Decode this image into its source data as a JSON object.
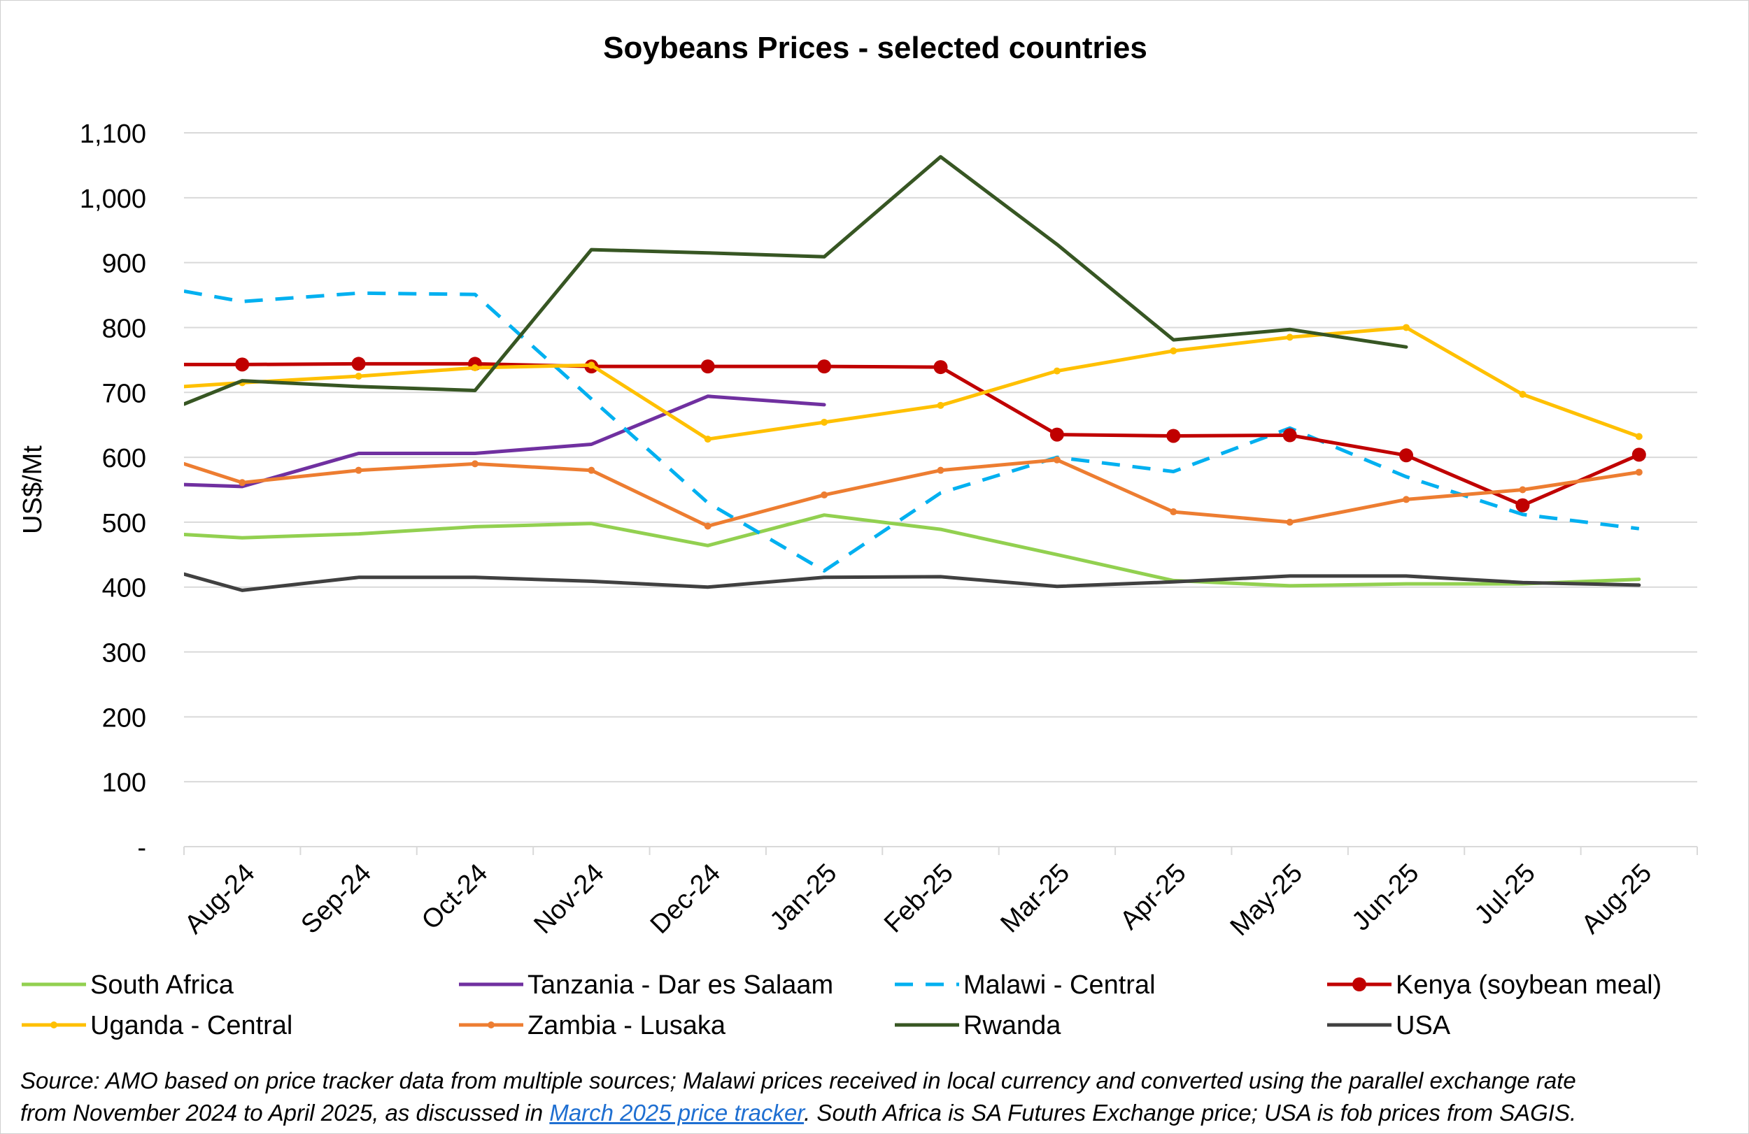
{
  "chart_data": {
    "type": "line",
    "title": "Soybeans Prices -  selected countries",
    "ylabel": "US$/Mt",
    "xlabel": "",
    "ylim": [
      0,
      1100
    ],
    "yticks": [
      0,
      100,
      200,
      300,
      400,
      500,
      600,
      700,
      800,
      900,
      1000,
      1100
    ],
    "ytick_labels": [
      "-",
      "100",
      "200",
      "300",
      "400",
      "500",
      "600",
      "700",
      "800",
      "900",
      "1,000",
      "1,100"
    ],
    "categories": [
      "Aug-24",
      "Sep-24",
      "Oct-24",
      "Nov-24",
      "Dec-24",
      "Jan-25",
      "Feb-25",
      "Mar-25",
      "Apr-25",
      "May-25",
      "Jun-25",
      "Jul-25",
      "Aug-25"
    ],
    "grid": "horizontal",
    "legend_position": "bottom",
    "series": [
      {
        "name": "South Africa",
        "color": "#92d050",
        "style": "solid",
        "marker": "none",
        "x": [
          -0.5,
          0,
          1,
          2,
          3,
          4,
          5,
          6,
          7,
          8,
          9,
          10,
          11,
          12
        ],
        "values": [
          481,
          476,
          482,
          493,
          498,
          464,
          511,
          489,
          450,
          410,
          402,
          405,
          405,
          412
        ]
      },
      {
        "name": "Tanzania - Dar es Salaam",
        "color": "#7030a0",
        "style": "solid",
        "marker": "none",
        "x": [
          -0.5,
          0,
          1,
          2,
          3,
          4,
          5
        ],
        "values": [
          558,
          555,
          606,
          606,
          620,
          694,
          681
        ]
      },
      {
        "name": "Malawi - Central",
        "color": "#00b0f0",
        "style": "dashed",
        "marker": "none",
        "x": [
          -0.5,
          0,
          1,
          2,
          3,
          4,
          5,
          6,
          7,
          8,
          9,
          10,
          11,
          12
        ],
        "values": [
          856,
          840,
          853,
          851,
          690,
          530,
          425,
          545,
          600,
          578,
          645,
          570,
          512,
          490
        ]
      },
      {
        "name": "Kenya (soybean meal)",
        "color": "#c00000",
        "style": "solid",
        "marker": "circle-large",
        "x": [
          -0.5,
          0,
          1,
          2,
          3,
          4,
          5,
          6,
          7,
          8,
          9,
          10,
          11,
          12
        ],
        "values": [
          743,
          743,
          744,
          744,
          740,
          740,
          740,
          739,
          635,
          633,
          634,
          603,
          526,
          604
        ]
      },
      {
        "name": "Uganda - Central",
        "color": "#ffc000",
        "style": "solid",
        "marker": "dot-small",
        "x": [
          -0.5,
          0,
          1,
          2,
          3,
          4,
          5,
          6,
          7,
          8,
          9,
          10,
          11,
          12
        ],
        "values": [
          709,
          715,
          725,
          738,
          742,
          628,
          654,
          680,
          733,
          764,
          785,
          800,
          697,
          632
        ]
      },
      {
        "name": "Zambia - Lusaka",
        "color": "#ed7d31",
        "style": "solid",
        "marker": "dot-small",
        "x": [
          -0.5,
          0,
          1,
          2,
          3,
          4,
          5,
          6,
          7,
          8,
          9,
          10,
          11,
          12
        ],
        "values": [
          590,
          561,
          580,
          590,
          580,
          494,
          542,
          580,
          596,
          516,
          500,
          535,
          550,
          577
        ]
      },
      {
        "name": "Rwanda",
        "color": "#375623",
        "style": "solid",
        "marker": "none",
        "x": [
          -0.5,
          0,
          1,
          2,
          3,
          4,
          5,
          6,
          7,
          8,
          9,
          10
        ],
        "values": [
          682,
          718,
          709,
          703,
          920,
          915,
          909,
          1063,
          928,
          781,
          797,
          770
        ]
      },
      {
        "name": "USA",
        "color": "#404040",
        "style": "solid",
        "marker": "none",
        "x": [
          -0.5,
          0,
          1,
          2,
          3,
          4,
          5,
          6,
          7,
          8,
          9,
          10,
          11,
          12
        ],
        "values": [
          420,
          395,
          415,
          415,
          409,
          400,
          415,
          416,
          401,
          408,
          417,
          417,
          407,
          403
        ]
      }
    ]
  },
  "legend_rows": [
    [
      "South Africa",
      "Tanzania - Dar es Salaam",
      "Malawi - Central",
      "Kenya (soybean meal)"
    ],
    [
      "Uganda - Central",
      "Zambia - Lusaka",
      "Rwanda",
      "USA"
    ]
  ],
  "source": {
    "line1": "Source: AMO based on price tracker data from multiple sources; Malawi prices received in local currency and converted using the parallel exchange rate",
    "line2_before": "from November 2024 to April 2025, as discussed in ",
    "link_text": "March 2025 price tracker",
    "line2_after": ". South Africa is SA Futures Exchange price; USA is fob prices from SAGIS."
  }
}
